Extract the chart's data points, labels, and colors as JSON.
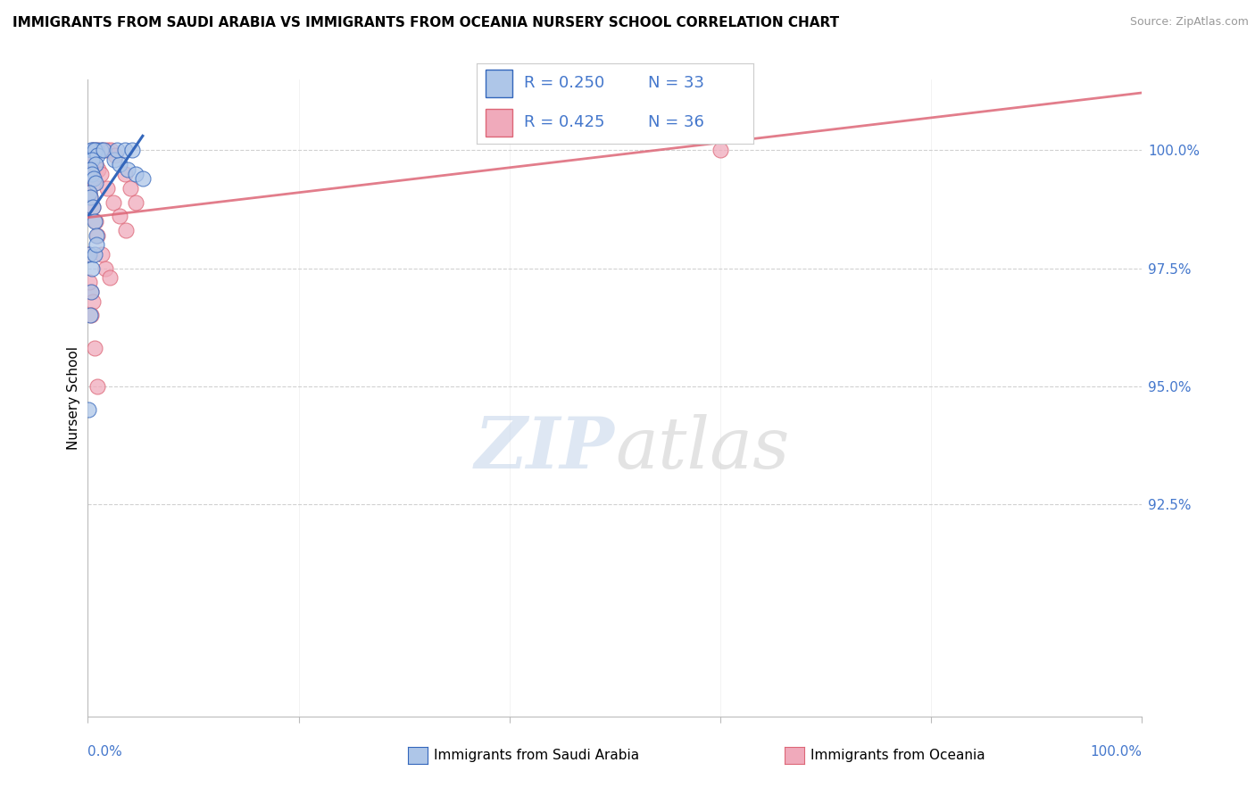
{
  "title": "IMMIGRANTS FROM SAUDI ARABIA VS IMMIGRANTS FROM OCEANIA NURSERY SCHOOL CORRELATION CHART",
  "source": "Source: ZipAtlas.com",
  "ylabel": "Nursery School",
  "legend_label1": "Immigrants from Saudi Arabia",
  "legend_label2": "Immigrants from Oceania",
  "R1": 0.25,
  "N1": 33,
  "R2": 0.425,
  "N2": 36,
  "watermark": "ZIPatlas",
  "blue_color": "#aec6e8",
  "pink_color": "#f0aabb",
  "blue_line_color": "#3366bb",
  "pink_line_color": "#dd6677",
  "xlim": [
    0.0,
    100.0
  ],
  "ylim": [
    88.0,
    101.5
  ],
  "ytick_vals": [
    92.5,
    95.0,
    97.5,
    100.0
  ],
  "ytick_labels": [
    "92.5%",
    "95.0%",
    "97.5%",
    "100.0%"
  ],
  "blue_x": [
    0.5,
    0.8,
    1.2,
    0.3,
    0.6,
    0.9,
    1.5,
    0.4,
    0.7,
    0.2,
    0.35,
    0.55,
    0.75,
    0.1,
    0.25,
    0.45,
    0.65,
    0.85,
    0.15,
    0.4,
    2.5,
    3.0,
    3.8,
    4.5,
    5.2,
    2.8,
    3.5,
    4.2,
    0.05,
    0.2,
    0.3,
    0.6,
    0.8
  ],
  "blue_y": [
    100.0,
    100.0,
    100.0,
    100.0,
    100.0,
    99.9,
    100.0,
    99.8,
    99.7,
    99.6,
    99.5,
    99.4,
    99.3,
    99.1,
    99.0,
    98.8,
    98.5,
    98.2,
    97.8,
    97.5,
    99.8,
    99.7,
    99.6,
    99.5,
    99.4,
    100.0,
    100.0,
    100.0,
    94.5,
    96.5,
    97.0,
    97.8,
    98.0
  ],
  "pink_x": [
    0.5,
    0.9,
    1.4,
    1.8,
    2.2,
    2.6,
    0.4,
    0.7,
    1.0,
    0.2,
    0.35,
    0.6,
    0.1,
    0.25,
    0.45,
    0.7,
    0.9,
    1.3,
    1.7,
    2.1,
    0.3,
    0.5,
    3.5,
    4.0,
    4.5,
    60.0,
    1.2,
    1.8,
    2.4,
    3.0,
    3.6,
    0.05,
    0.15,
    0.3,
    0.6,
    0.9
  ],
  "pink_y": [
    100.0,
    100.0,
    100.0,
    100.0,
    100.0,
    99.9,
    99.8,
    99.7,
    99.6,
    99.5,
    99.4,
    99.3,
    99.1,
    99.0,
    98.8,
    98.5,
    98.2,
    97.8,
    97.5,
    97.3,
    97.0,
    96.8,
    99.5,
    99.2,
    98.9,
    100.0,
    99.5,
    99.2,
    98.9,
    98.6,
    98.3,
    97.8,
    97.2,
    96.5,
    95.8,
    95.0
  ]
}
